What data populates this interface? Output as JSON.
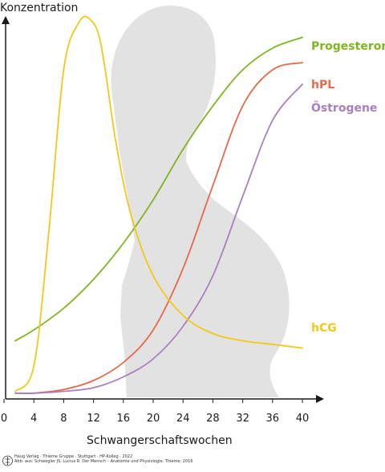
{
  "chart_data": {
    "type": "line",
    "xlabel": "Schwangerschaftswochen",
    "ylabel": "Konzentration",
    "xlim": [
      0,
      42
    ],
    "ylim": [
      0,
      100
    ],
    "x_ticks": [
      "0",
      "4",
      "8",
      "12",
      "16",
      "20",
      "24",
      "28",
      "32",
      "36",
      "40"
    ],
    "series": [
      {
        "name": "Progesteron",
        "color": "#7fb51f",
        "x": [
          1.5,
          4,
          8,
          12,
          16,
          20,
          24,
          28,
          32,
          36,
          40
        ],
        "y": [
          15,
          18,
          24,
          32,
          42,
          54,
          68,
          80,
          90,
          96,
          99
        ]
      },
      {
        "name": "hPL",
        "color": "#e8684a",
        "x": [
          1.5,
          4,
          8,
          12,
          16,
          20,
          24,
          28,
          32,
          36,
          40
        ],
        "y": [
          0.5,
          0.5,
          1.5,
          4,
          9,
          18,
          35,
          58,
          80,
          90,
          92
        ]
      },
      {
        "name": "Östrogene",
        "color": "#a97fc0",
        "x": [
          1.5,
          4,
          8,
          12,
          16,
          20,
          24,
          28,
          32,
          36,
          40
        ],
        "y": [
          0.5,
          0.5,
          1,
          2,
          5,
          10,
          19,
          33,
          55,
          76,
          86
        ]
      },
      {
        "name": "hCG",
        "color": "#f5c716",
        "x": [
          1.5,
          4,
          6,
          8,
          10,
          11.5,
          13,
          15,
          17,
          20,
          24,
          28,
          32,
          36,
          40
        ],
        "y": [
          1,
          8,
          45,
          90,
          103,
          104,
          97,
          70,
          50,
          33,
          22,
          17,
          15,
          14,
          13
        ]
      }
    ]
  },
  "footer": {
    "credit_line1": "Haug Verlag · Thieme Gruppe · Stuttgart · HP-Kolleg · 2022",
    "credit_line2": "Abb. aus: Schwegler JS, Lucius R. Der Mensch – Anatomie und Physiologie. Thieme; 2016"
  }
}
